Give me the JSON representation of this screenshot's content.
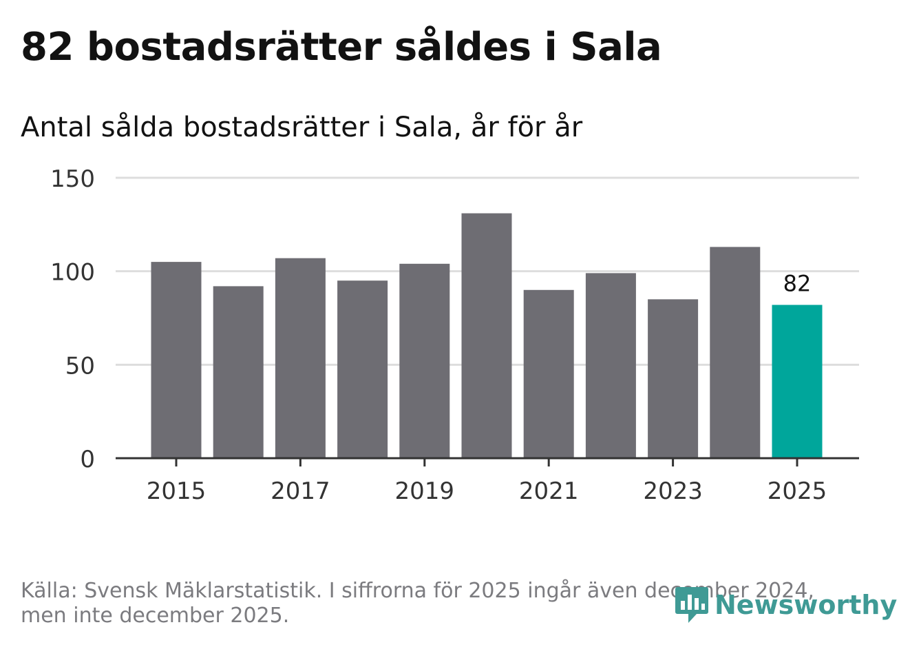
{
  "header": {
    "title": "82 bostadsrätter såldes i Sala",
    "subtitle": "Antal sålda bostadsrätter i Sala, år för år"
  },
  "footer": {
    "source_line1": "Källa: Svensk Mäklarstatistik. I siffrorna för 2025 ingår även december 2024,",
    "source_line2": "men inte december 2025.",
    "logo_text": "Newsworthy",
    "logo_icon": "newsworthy-bar-chart-icon"
  },
  "colors": {
    "bar": "#6e6d73",
    "highlight": "#00a69b",
    "grid": "#dddddd",
    "axis": "#333333",
    "logo": "#3f9a95"
  },
  "chart_data": {
    "type": "bar",
    "title": "Antal sålda bostadsrätter i Sala, år för år",
    "xlabel": "",
    "ylabel": "",
    "categories": [
      "2015",
      "2016",
      "2017",
      "2018",
      "2019",
      "2020",
      "2021",
      "2022",
      "2023",
      "2024",
      "2025"
    ],
    "values": [
      105,
      92,
      107,
      95,
      104,
      131,
      90,
      99,
      85,
      113,
      82
    ],
    "highlight_index": 10,
    "data_labels": [
      {
        "index": 10,
        "text": "82"
      }
    ],
    "x_ticks": [
      "2015",
      "2017",
      "2019",
      "2021",
      "2023",
      "2025"
    ],
    "y_ticks": [
      "0",
      "50",
      "100",
      "150"
    ],
    "ylim": [
      0,
      150
    ],
    "grid": true,
    "legend": "none"
  }
}
